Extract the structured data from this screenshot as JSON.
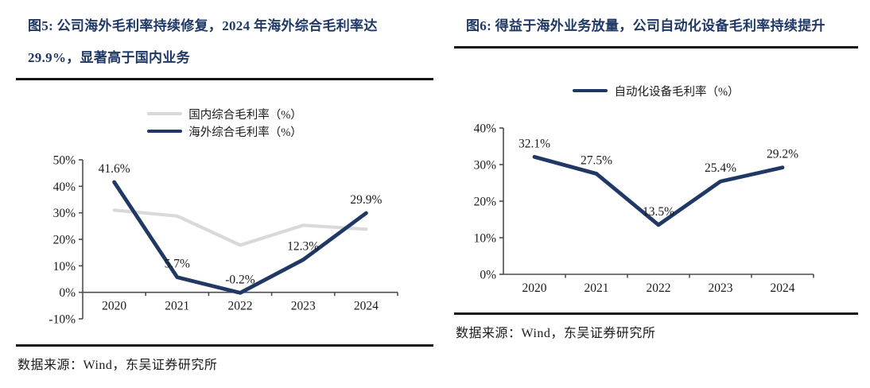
{
  "colors": {
    "accent_navy": "#1f3864",
    "series_gray": "#d9d9d9",
    "axis_gray": "#4d4d4d",
    "rule_black": "#161616",
    "text_black": "#1a1a1a"
  },
  "chart_data": [
    {
      "type": "line",
      "figure_id": "figure-5",
      "title": "图5:  公司海外毛利率持续修复，2024 年海外综合毛利率达 29.9%，显著高于国内业务",
      "source": "数据来源：Wind，东吴证券研究所",
      "categories": [
        "2020",
        "2021",
        "2022",
        "2023",
        "2024"
      ],
      "series": [
        {
          "name": "国内综合毛利率（%）",
          "color": "#d9d9d9",
          "values": [
            31.0,
            28.8,
            17.8,
            25.3,
            23.8
          ],
          "show_labels": false,
          "point_labels": []
        },
        {
          "name": "海外综合毛利率（%）",
          "color": "#1f3864",
          "values": [
            41.6,
            5.7,
            -0.2,
            12.3,
            29.9
          ],
          "show_labels": true,
          "point_labels": [
            "41.6%",
            "5.7%",
            "-0.2%",
            "12.3%",
            "29.9%"
          ]
        }
      ],
      "ylim": [
        -10,
        50
      ],
      "ytick_step": 10,
      "ytick_labels": [
        "50%",
        "40%",
        "30%",
        "20%",
        "10%",
        "0%",
        "-10%"
      ],
      "legend_position": "top",
      "grid": false
    },
    {
      "type": "line",
      "figure_id": "figure-6",
      "title": "图6:  得益于海外业务放量，公司自动化设备毛利率持续提升",
      "source": "数据来源：Wind，东吴证券研究所",
      "categories": [
        "2020",
        "2021",
        "2022",
        "2023",
        "2024"
      ],
      "series": [
        {
          "name": "自动化设备毛利率（%）",
          "color": "#1f3864",
          "values": [
            32.1,
            27.5,
            13.5,
            25.4,
            29.2
          ],
          "show_labels": true,
          "point_labels": [
            "32.1%",
            "27.5%",
            "13.5%",
            "25.4%",
            "29.2%"
          ]
        }
      ],
      "ylim": [
        0,
        40
      ],
      "ytick_step": 10,
      "ytick_labels": [
        "40%",
        "30%",
        "20%",
        "10%",
        "0%"
      ],
      "legend_position": "top",
      "grid": false
    }
  ]
}
